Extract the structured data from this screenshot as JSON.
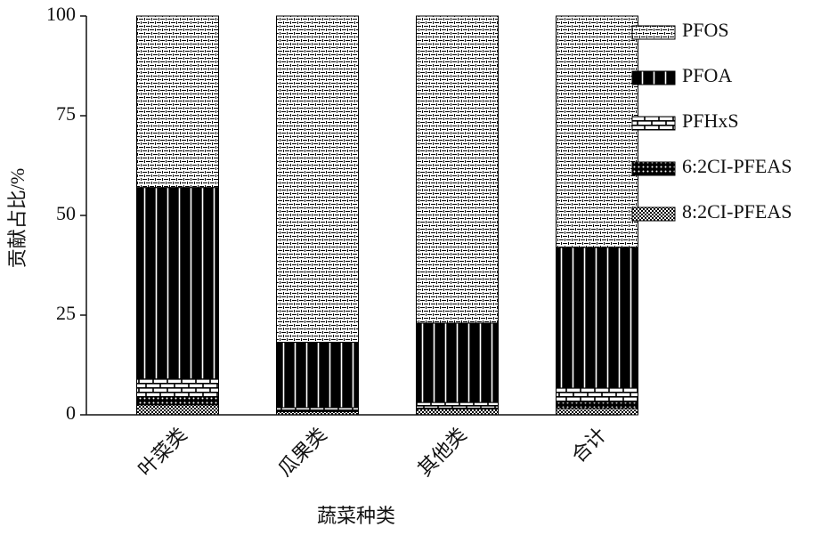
{
  "chart_data": {
    "type": "stacked_bar",
    "x_label": "蔬菜种类",
    "y_label": "贡献占比/%",
    "categories": [
      "叶菜类",
      "瓜果类",
      "其他类",
      "合计"
    ],
    "ylim": [
      0,
      100
    ],
    "yticks": [
      0,
      25,
      50,
      75,
      100
    ],
    "legend": "right",
    "series": [
      {
        "name": "PFOS",
        "color": "#000000",
        "pattern": "dashes",
        "values": [
          43,
          81.8,
          77,
          58
        ]
      },
      {
        "name": "PFOA",
        "color": "#000000",
        "pattern": "stripes",
        "values": [
          48,
          16.4,
          19.9,
          35.3
        ]
      },
      {
        "name": "PFHxS",
        "color": "#000000",
        "pattern": "bricks",
        "values": [
          4.5,
          0.8,
          1.4,
          3.5
        ]
      },
      {
        "name": "6:2CI-PFEAS",
        "color": "#000000",
        "pattern": "dots",
        "values": [
          2,
          0.2,
          0.2,
          1.5
        ]
      },
      {
        "name": "8:2CI-PFEAS",
        "color": "#000000",
        "pattern": "checks",
        "values": [
          2.5,
          0.8,
          1.5,
          1.7
        ]
      }
    ]
  }
}
